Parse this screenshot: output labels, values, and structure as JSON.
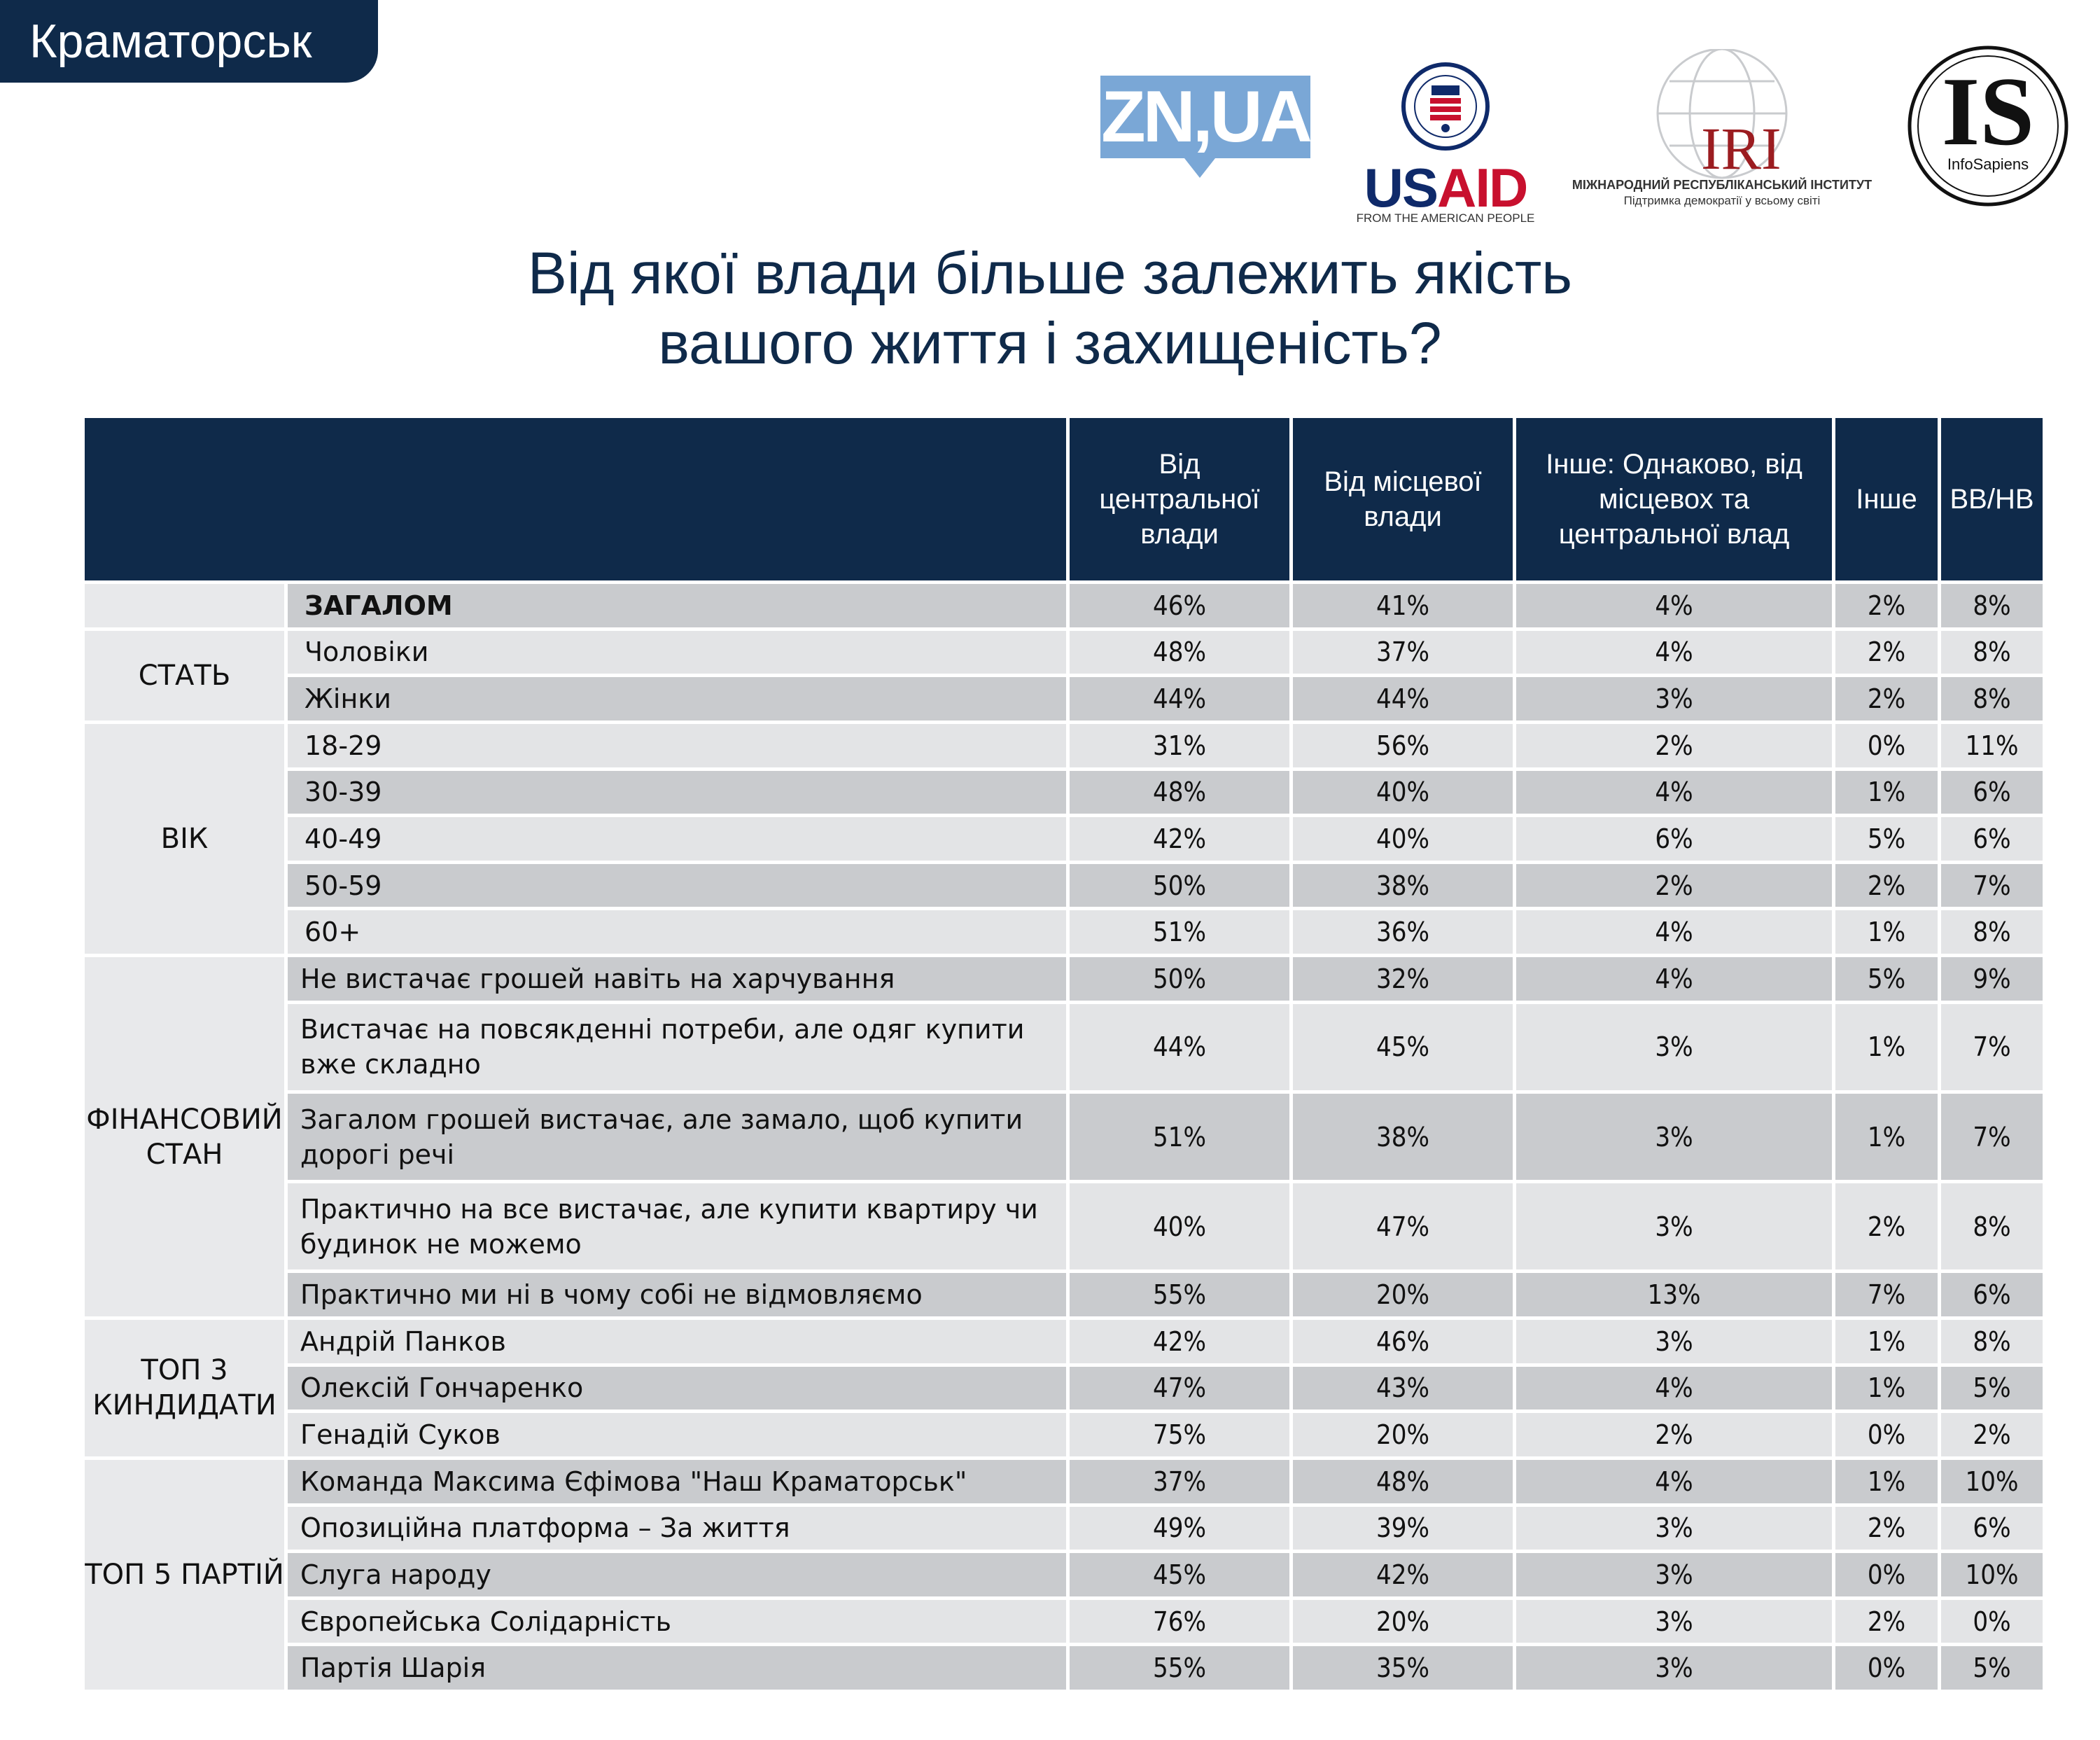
{
  "city": "Краматорськ",
  "logos": {
    "zn": "ZN,UA",
    "usaid": {
      "us": "US",
      "aid": "AID",
      "subtitle": "FROM THE AMERICAN PEOPLE"
    },
    "iri": {
      "name": "IRI",
      "line1": "МІЖНАРОДНИЙ РЕСПУБЛІКАНСЬКИЙ ІНСТИТУТ",
      "line2": "Підтримка демократії у всьому світі"
    },
    "infosapiens": {
      "mark": "IS",
      "name": "InfoSapiens"
    }
  },
  "title": {
    "line1": "Від якої влади більше залежить якість",
    "line2": "вашого життя і захищеність?"
  },
  "chart_data": {
    "type": "table",
    "columns": [
      "Від центральної влади",
      "Від місцевої влади",
      "Інше: Однаково, від місцевох та центральної влад",
      "Інше",
      "ВВ/НВ"
    ],
    "groups": [
      {
        "name": "",
        "rows": [
          {
            "label": "ЗАГАЛОМ",
            "values": [
              "46%",
              "41%",
              "4%",
              "2%",
              "8%"
            ]
          }
        ]
      },
      {
        "name": "СТАТЬ",
        "rows": [
          {
            "label": "Чоловіки",
            "values": [
              "48%",
              "37%",
              "4%",
              "2%",
              "8%"
            ]
          },
          {
            "label": "Жінки",
            "values": [
              "44%",
              "44%",
              "3%",
              "2%",
              "8%"
            ]
          }
        ]
      },
      {
        "name": "ВІК",
        "rows": [
          {
            "label": "18-29",
            "values": [
              "31%",
              "56%",
              "2%",
              "0%",
              "11%"
            ]
          },
          {
            "label": "30-39",
            "values": [
              "48%",
              "40%",
              "4%",
              "1%",
              "6%"
            ]
          },
          {
            "label": "40-49",
            "values": [
              "42%",
              "40%",
              "6%",
              "5%",
              "6%"
            ]
          },
          {
            "label": "50-59",
            "values": [
              "50%",
              "38%",
              "2%",
              "2%",
              "7%"
            ]
          },
          {
            "label": "60+",
            "values": [
              "51%",
              "36%",
              "4%",
              "1%",
              "8%"
            ]
          }
        ]
      },
      {
        "name": "ФІНАНСОВИЙ СТАН",
        "rows": [
          {
            "label": "Не вистачає грошей навіть на харчування",
            "values": [
              "50%",
              "32%",
              "4%",
              "5%",
              "9%"
            ]
          },
          {
            "label": "Вистачає на повсякденні потреби, але одяг купити вже складно",
            "values": [
              "44%",
              "45%",
              "3%",
              "1%",
              "7%"
            ]
          },
          {
            "label": "Загалом грошей вистачає, але замало, щоб купити дорогі речі",
            "values": [
              "51%",
              "38%",
              "3%",
              "1%",
              "7%"
            ]
          },
          {
            "label": "Практично на все вистачає, але купити квартиру чи будинок не можемо",
            "values": [
              "40%",
              "47%",
              "3%",
              "2%",
              "8%"
            ]
          },
          {
            "label": "Практично ми ні в чому собі не відмовляємо",
            "values": [
              "55%",
              "20%",
              "13%",
              "7%",
              "6%"
            ]
          }
        ]
      },
      {
        "name": "ТОП 3 КИНДИДАТИ",
        "rows": [
          {
            "label": "Андрій Панков",
            "values": [
              "42%",
              "46%",
              "3%",
              "1%",
              "8%"
            ]
          },
          {
            "label": "Олексій Гончаренко",
            "values": [
              "47%",
              "43%",
              "4%",
              "1%",
              "5%"
            ]
          },
          {
            "label": "Генадій Суков",
            "values": [
              "75%",
              "20%",
              "2%",
              "0%",
              "2%"
            ]
          }
        ]
      },
      {
        "name": "ТОП 5 ПАРТІЙ",
        "rows": [
          {
            "label": "Команда Максима Єфімова \"Наш Краматорськ\"",
            "values": [
              "37%",
              "48%",
              "4%",
              "1%",
              "10%"
            ]
          },
          {
            "label": "Опозиційна платформа – За життя",
            "values": [
              "49%",
              "39%",
              "3%",
              "2%",
              "6%"
            ]
          },
          {
            "label": "Слуга народу",
            "values": [
              "45%",
              "42%",
              "3%",
              "0%",
              "10%"
            ]
          },
          {
            "label": "Європейська Солідарність",
            "values": [
              "76%",
              "20%",
              "3%",
              "2%",
              "0%"
            ]
          },
          {
            "label": "Партія Шарія",
            "values": [
              "55%",
              "35%",
              "3%",
              "0%",
              "5%"
            ]
          }
        ]
      }
    ]
  }
}
